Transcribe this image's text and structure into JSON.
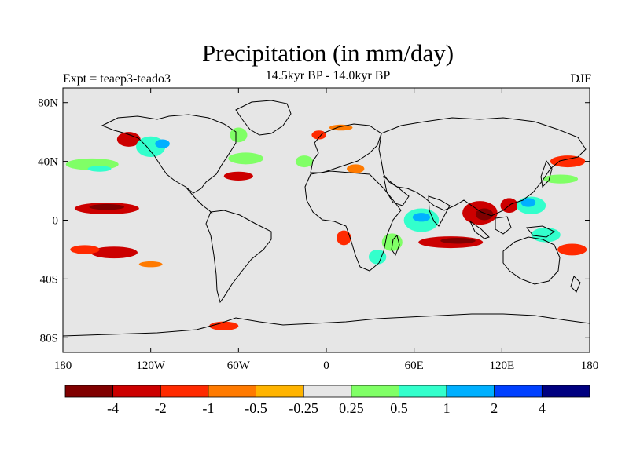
{
  "title": "Precipitation (in mm/day)",
  "subtitle": "14.5kyr BP - 14.0kyr BP",
  "left_label": "Expt = teaep3-teado3",
  "right_label": "DJF",
  "map": {
    "lon_range": [
      -180,
      180
    ],
    "lat_range": [
      -90,
      90
    ],
    "lat_ticks": [
      {
        "lat": 80,
        "label": "80N"
      },
      {
        "lat": 40,
        "label": "40N"
      },
      {
        "lat": 0,
        "label": "0"
      },
      {
        "lat": -40,
        "label": "40S"
      },
      {
        "lat": -80,
        "label": "80S"
      }
    ],
    "lon_ticks": [
      {
        "lon": -180,
        "label": "180"
      },
      {
        "lon": -120,
        "label": "120W"
      },
      {
        "lon": -60,
        "label": "60W"
      },
      {
        "lon": 0,
        "label": "0"
      },
      {
        "lon": 60,
        "label": "60E"
      },
      {
        "lon": 120,
        "label": "120E"
      },
      {
        "lon": 180,
        "label": "180"
      }
    ],
    "background_color": "#e6e6e6"
  },
  "colorbar": {
    "colors": [
      "#800000",
      "#cc0000",
      "#ff2a00",
      "#ff7a00",
      "#ffb400",
      "#e6e6e6",
      "#80ff66",
      "#33ffcc",
      "#00b0ff",
      "#0040ff",
      "#000080"
    ],
    "labels": [
      "-4",
      "-2",
      "-1",
      "-0.5",
      "-0.25",
      "0.25",
      "0.5",
      "1",
      "2",
      "4"
    ]
  },
  "anomalies": [
    {
      "lon": -150,
      "lat": 8,
      "rx": 22,
      "ry": 4,
      "level": -2
    },
    {
      "lon": -150,
      "lat": 9,
      "rx": 12,
      "ry": 2,
      "level": -4
    },
    {
      "lon": -145,
      "lat": -22,
      "rx": 16,
      "ry": 4,
      "level": -2
    },
    {
      "lon": -165,
      "lat": -20,
      "rx": 10,
      "ry": 3,
      "level": -1
    },
    {
      "lon": -160,
      "lat": 38,
      "rx": 18,
      "ry": 4,
      "level": 0.5
    },
    {
      "lon": -155,
      "lat": 35,
      "rx": 8,
      "ry": 2,
      "level": 1
    },
    {
      "lon": -135,
      "lat": 55,
      "rx": 8,
      "ry": 5,
      "level": -2
    },
    {
      "lon": -120,
      "lat": 50,
      "rx": 10,
      "ry": 7,
      "level": 1
    },
    {
      "lon": -112,
      "lat": 52,
      "rx": 5,
      "ry": 3,
      "level": 2
    },
    {
      "lon": -60,
      "lat": 30,
      "rx": 10,
      "ry": 3,
      "level": -2
    },
    {
      "lon": -55,
      "lat": 42,
      "rx": 12,
      "ry": 4,
      "level": 0.5
    },
    {
      "lon": -60,
      "lat": 58,
      "rx": 6,
      "ry": 5,
      "level": 0.5
    },
    {
      "lon": -15,
      "lat": 40,
      "rx": 6,
      "ry": 4,
      "level": 0.5
    },
    {
      "lon": -5,
      "lat": 58,
      "rx": 5,
      "ry": 3,
      "level": -1
    },
    {
      "lon": 10,
      "lat": 63,
      "rx": 8,
      "ry": 2,
      "level": -0.5
    },
    {
      "lon": 20,
      "lat": 35,
      "rx": 6,
      "ry": 3,
      "level": -0.5
    },
    {
      "lon": 12,
      "lat": -12,
      "rx": 5,
      "ry": 5,
      "level": -1
    },
    {
      "lon": 35,
      "lat": -25,
      "rx": 6,
      "ry": 5,
      "level": 1
    },
    {
      "lon": 45,
      "lat": -15,
      "rx": 7,
      "ry": 6,
      "level": 0.5
    },
    {
      "lon": 65,
      "lat": 0,
      "rx": 12,
      "ry": 8,
      "level": 1
    },
    {
      "lon": 65,
      "lat": 2,
      "rx": 6,
      "ry": 3,
      "level": 2
    },
    {
      "lon": 85,
      "lat": -15,
      "rx": 22,
      "ry": 4,
      "level": -2
    },
    {
      "lon": 90,
      "lat": -14,
      "rx": 12,
      "ry": 2,
      "level": -4
    },
    {
      "lon": 105,
      "lat": 5,
      "rx": 12,
      "ry": 8,
      "level": -2
    },
    {
      "lon": 108,
      "lat": 4,
      "rx": 6,
      "ry": 4,
      "level": -4
    },
    {
      "lon": 125,
      "lat": 10,
      "rx": 6,
      "ry": 5,
      "level": -2
    },
    {
      "lon": 140,
      "lat": 10,
      "rx": 10,
      "ry": 6,
      "level": 1
    },
    {
      "lon": 138,
      "lat": 12,
      "rx": 5,
      "ry": 3,
      "level": 2
    },
    {
      "lon": 150,
      "lat": -10,
      "rx": 10,
      "ry": 5,
      "level": 1
    },
    {
      "lon": 168,
      "lat": -20,
      "rx": 10,
      "ry": 4,
      "level": -1
    },
    {
      "lon": 165,
      "lat": 40,
      "rx": 12,
      "ry": 4,
      "level": -1
    },
    {
      "lon": 160,
      "lat": 28,
      "rx": 12,
      "ry": 3,
      "level": 0.5
    },
    {
      "lon": -70,
      "lat": -72,
      "rx": 10,
      "ry": 3,
      "level": -1
    },
    {
      "lon": -120,
      "lat": -30,
      "rx": 8,
      "ry": 2,
      "level": -0.5
    }
  ]
}
